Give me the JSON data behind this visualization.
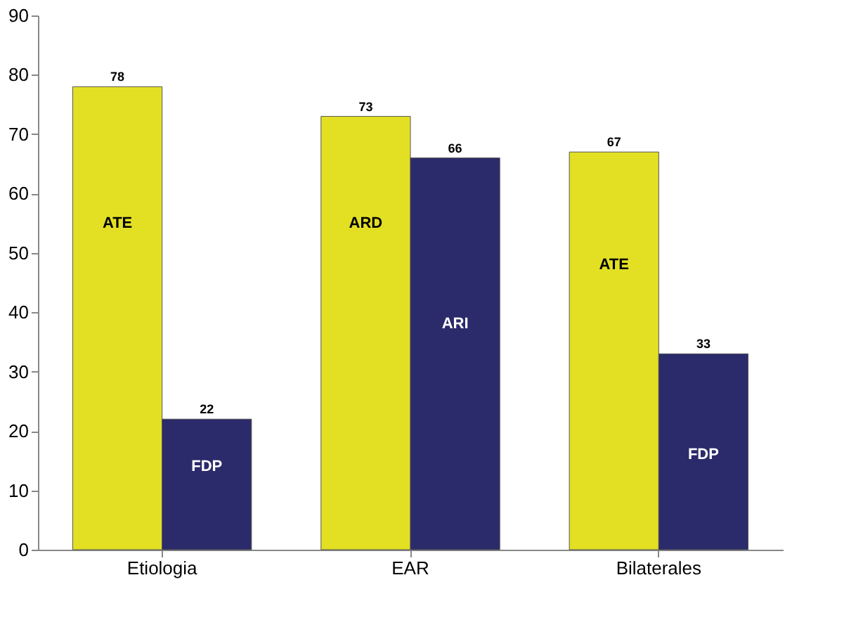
{
  "chart_data": {
    "type": "bar",
    "categories": [
      "Etiologia",
      "EAR",
      "Bilaterales"
    ],
    "series": [
      {
        "color": "#e3e024",
        "values": [
          78,
          73,
          67
        ]
      },
      {
        "color": "#2b2a6b",
        "values": [
          22,
          66,
          33
        ]
      }
    ],
    "ylim": [
      0,
      90
    ],
    "yticks": [
      0,
      10,
      20,
      30,
      40,
      50,
      60,
      70,
      80,
      90
    ],
    "grid": false,
    "data_labels": true,
    "annotations": [
      {
        "text": "ATE",
        "x": "Etiologia",
        "y": 55
      },
      {
        "text": "FDP",
        "x": "Etiologia",
        "y": 14
      },
      {
        "text": "ARD",
        "x": "EAR",
        "y": 55
      },
      {
        "text": "ARI",
        "x": "EAR",
        "y": 38
      },
      {
        "text": "ATE",
        "x": "Bilaterales",
        "y": 48
      },
      {
        "text": "FDP",
        "x": "Bilaterales",
        "y": 16
      }
    ]
  }
}
